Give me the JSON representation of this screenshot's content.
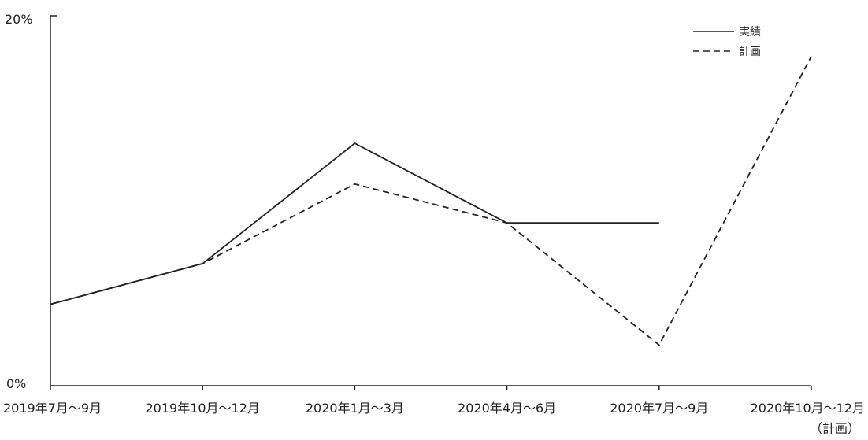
{
  "chart_data": {
    "type": "line",
    "categories": [
      "2019年7月～9月",
      "2019年10月～12月",
      "2020年1月～3月",
      "2020年4月～6月",
      "2020年7月～9月",
      "2020年10月～12月"
    ],
    "category_sub_labels": [
      "",
      "",
      "",
      "",
      "",
      "（計画）"
    ],
    "ylim": [
      0,
      20
    ],
    "y_tick_labels": [
      "0%",
      "20%"
    ],
    "series": [
      {
        "name": "実績",
        "style": "solid",
        "color": "#222222",
        "values": [
          4.4,
          6.6,
          13.1,
          8.8,
          8.8,
          null
        ]
      },
      {
        "name": "計画",
        "style": "dashed",
        "color": "#222222",
        "values": [
          4.4,
          6.6,
          10.9,
          8.8,
          2.2,
          17.8
        ]
      }
    ],
    "legend_position": "top-right",
    "grid": false
  }
}
